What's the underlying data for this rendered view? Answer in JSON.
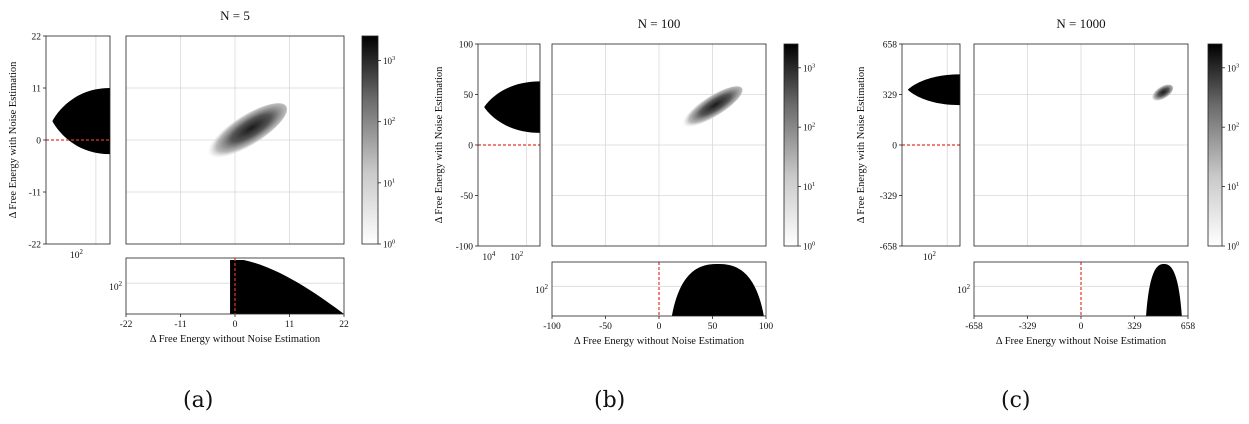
{
  "figure": {
    "panels": [
      {
        "caption": "(a)"
      },
      {
        "caption": "(b)"
      },
      {
        "caption": "(c)"
      }
    ]
  },
  "chart_data": [
    {
      "type": "heatmap",
      "title": "N = 5",
      "xlabel": "Δ Free Energy without Noise Estimation",
      "ylabel": "Δ Free Energy with Noise Estimation",
      "xlim": [
        -22,
        22
      ],
      "ylim": [
        -22,
        22
      ],
      "xticks": [
        "-22",
        "-11",
        "0",
        "11",
        "22"
      ],
      "yticks": [
        "22",
        "11",
        "0",
        "-11",
        "-22"
      ],
      "grid": true,
      "colorbar": {
        "scale": "log",
        "ticks": [
          "10^0",
          "10^1",
          "10^2",
          "10^3"
        ],
        "cmap": "greys"
      },
      "joint_density": {
        "x_range": [
          -0.5,
          18
        ],
        "y_range": [
          -3,
          11
        ],
        "center_x": 2.5,
        "center_y": 2
      },
      "x_marginal": {
        "x_range": [
          -1,
          22
        ],
        "shape": "decaying",
        "log_tick": "10^2",
        "reference_line_x": 0
      },
      "y_marginal": {
        "y_range": [
          -3,
          11
        ],
        "log_tick": "10^2",
        "reference_line_y": 0
      },
      "reference_color": "#e8332a"
    },
    {
      "type": "heatmap",
      "title": "N = 100",
      "xlabel": "Δ Free Energy without Noise Estimation",
      "ylabel": "Δ Free Energy with Noise Estimation",
      "xlim": [
        -100,
        100
      ],
      "ylim": [
        -100,
        100
      ],
      "xticks": [
        "-100",
        "-50",
        "0",
        "50",
        "100"
      ],
      "yticks": [
        "100",
        "50",
        "0",
        "-50",
        "-100"
      ],
      "grid": true,
      "colorbar": {
        "scale": "log",
        "ticks": [
          "10^0",
          "10^1",
          "10^2",
          "10^3"
        ],
        "cmap": "greys"
      },
      "joint_density": {
        "x_range": [
          20,
          85
        ],
        "y_range": [
          15,
          60
        ],
        "center_x": 50,
        "center_y": 38
      },
      "x_marginal": {
        "x_range": [
          12,
          98
        ],
        "shape": "bell",
        "log_tick": "10^2",
        "reference_line_x": 0
      },
      "y_marginal": {
        "y_range": [
          12,
          63
        ],
        "log_ticks": [
          "10^4",
          "10^2"
        ],
        "reference_line_y": 0
      },
      "reference_color": "#e8332a"
    },
    {
      "type": "heatmap",
      "title": "N = 1000",
      "xlabel": "Δ Free Energy without Noise Estimation",
      "ylabel": "Δ Free Energy with Noise Estimation",
      "xlim": [
        -658,
        658
      ],
      "ylim": [
        -658,
        658
      ],
      "xticks": [
        "-658",
        "-329",
        "0",
        "329",
        "658"
      ],
      "yticks": [
        "658",
        "329",
        "0",
        "-329",
        "-658"
      ],
      "grid": true,
      "colorbar": {
        "scale": "log",
        "ticks": [
          "10^0",
          "10^1",
          "10^2",
          "10^3"
        ],
        "cmap": "greys"
      },
      "joint_density": {
        "x_range": [
          430,
          580
        ],
        "y_range": [
          270,
          420
        ],
        "center_x": 500,
        "center_y": 340
      },
      "x_marginal": {
        "x_range": [
          400,
          620
        ],
        "shape": "bell",
        "log_tick": "10^2",
        "reference_line_x": 0
      },
      "y_marginal": {
        "y_range": [
          260,
          460
        ],
        "log_tick": "10^2",
        "reference_line_y": 0
      },
      "reference_color": "#e8332a"
    }
  ]
}
